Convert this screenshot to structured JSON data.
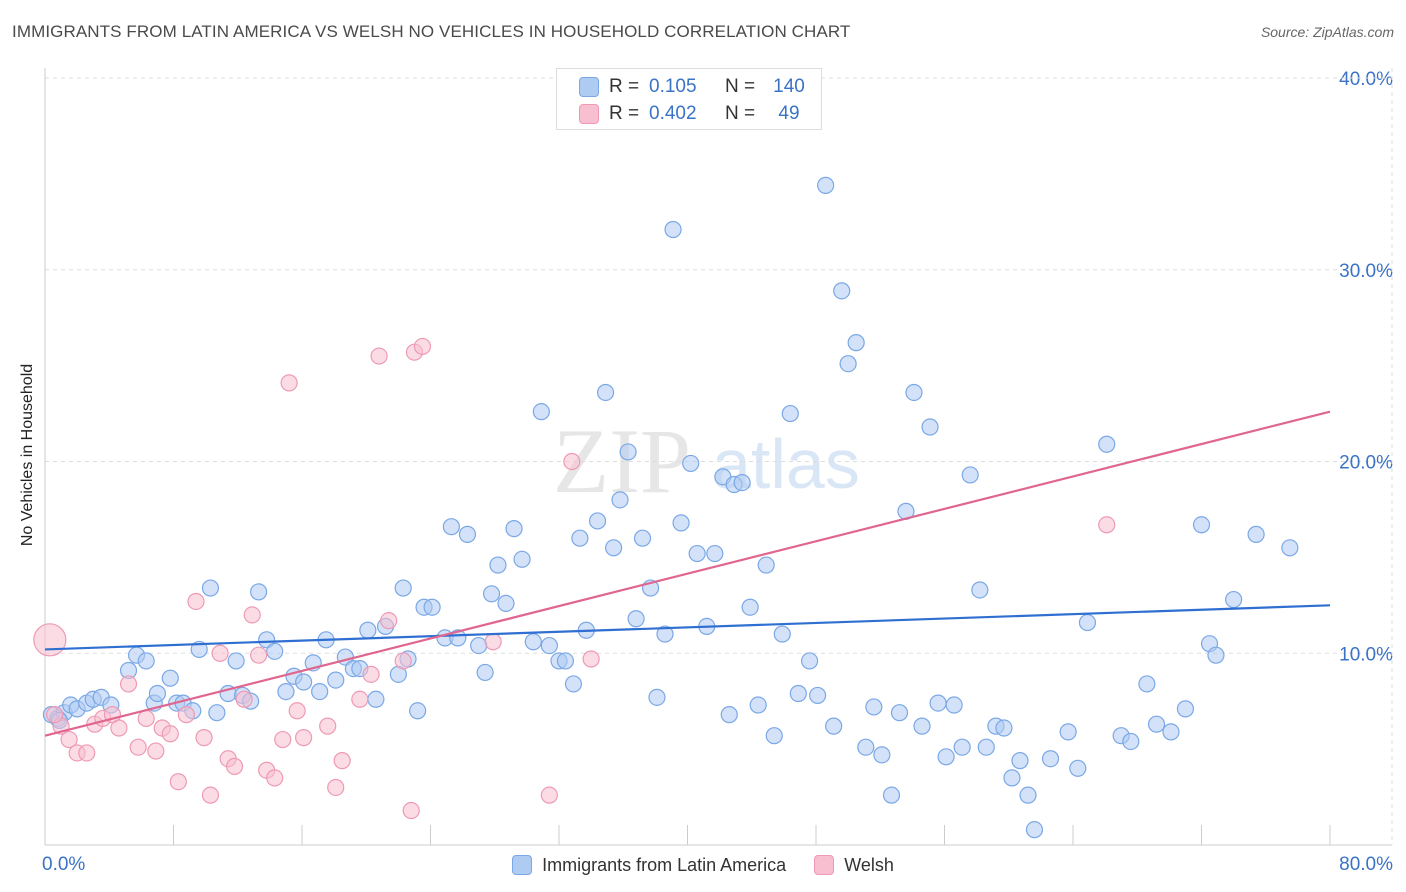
{
  "title": "IMMIGRANTS FROM LATIN AMERICA VS WELSH NO VEHICLES IN HOUSEHOLD CORRELATION CHART",
  "source": "Source: ZipAtlas.com",
  "watermark": {
    "zip": "ZIP",
    "atlas": "atlas"
  },
  "colors": {
    "blue_fill": "#aecbf2",
    "blue_stroke": "#7aa8e6",
    "blue_line": "#2f6fd1",
    "pink_fill": "#f7bfd0",
    "pink_stroke": "#ee9ab5",
    "pink_line": "#e0668f",
    "axis_label": "#3a73c6",
    "grid": "#dddddd"
  },
  "stats": [
    {
      "label": "R =",
      "r": "0.105",
      "n_label": "N =",
      "n": "140",
      "color": "blue"
    },
    {
      "label": "R =",
      "r": "0.402",
      "n_label": "N =",
      "n": "49",
      "color": "pink"
    }
  ],
  "chart_data": {
    "type": "scatter",
    "title": "IMMIGRANTS FROM LATIN AMERICA VS WELSH NO VEHICLES IN HOUSEHOLD CORRELATION CHART",
    "xlabel": "",
    "ylabel": "No Vehicles in Household",
    "xlim": [
      0,
      80
    ],
    "ylim": [
      0,
      40
    ],
    "x_tick_labels": [
      {
        "value": 0,
        "label": "0.0%"
      },
      {
        "value": 80,
        "label": "80.0%"
      }
    ],
    "y_tick_labels": [
      {
        "value": 10,
        "label": "10.0%"
      },
      {
        "value": 20,
        "label": "20.0%"
      },
      {
        "value": 30,
        "label": "30.0%"
      },
      {
        "value": 40,
        "label": "40.0%"
      }
    ],
    "grid": true,
    "legend_position": "bottom-center",
    "series": [
      {
        "name": "Immigrants from Latin America",
        "color": "blue",
        "trend": {
          "x": [
            0,
            80
          ],
          "y": [
            10.2,
            12.5
          ]
        },
        "points": [
          [
            0.4,
            6.8
          ],
          [
            0.8,
            6.6
          ],
          [
            1.2,
            6.9
          ],
          [
            1.6,
            7.3
          ],
          [
            2.0,
            7.1
          ],
          [
            2.6,
            7.4
          ],
          [
            3.0,
            7.6
          ],
          [
            3.5,
            7.7
          ],
          [
            4.1,
            7.3
          ],
          [
            5.2,
            9.1
          ],
          [
            5.7,
            9.9
          ],
          [
            6.3,
            9.6
          ],
          [
            6.8,
            7.4
          ],
          [
            7.0,
            7.9
          ],
          [
            7.8,
            8.7
          ],
          [
            8.2,
            7.4
          ],
          [
            8.6,
            7.4
          ],
          [
            9.2,
            7.0
          ],
          [
            9.6,
            10.2
          ],
          [
            10.3,
            13.4
          ],
          [
            10.7,
            6.9
          ],
          [
            11.4,
            7.9
          ],
          [
            11.9,
            9.6
          ],
          [
            12.3,
            7.8
          ],
          [
            12.8,
            7.5
          ],
          [
            13.3,
            13.2
          ],
          [
            13.8,
            10.7
          ],
          [
            14.3,
            10.1
          ],
          [
            15.0,
            8.0
          ],
          [
            15.5,
            8.8
          ],
          [
            16.1,
            8.5
          ],
          [
            16.7,
            9.5
          ],
          [
            17.1,
            8.0
          ],
          [
            17.5,
            10.7
          ],
          [
            18.1,
            8.6
          ],
          [
            18.7,
            9.8
          ],
          [
            19.2,
            9.2
          ],
          [
            19.6,
            9.2
          ],
          [
            20.1,
            11.2
          ],
          [
            20.6,
            7.6
          ],
          [
            21.2,
            11.4
          ],
          [
            22.0,
            8.9
          ],
          [
            22.3,
            13.4
          ],
          [
            22.6,
            9.7
          ],
          [
            23.2,
            7.0
          ],
          [
            23.6,
            12.4
          ],
          [
            24.1,
            12.4
          ],
          [
            24.9,
            10.8
          ],
          [
            25.3,
            16.6
          ],
          [
            25.7,
            10.8
          ],
          [
            26.3,
            16.2
          ],
          [
            27.0,
            10.4
          ],
          [
            27.4,
            9.0
          ],
          [
            27.8,
            13.1
          ],
          [
            28.2,
            14.6
          ],
          [
            28.7,
            12.6
          ],
          [
            29.2,
            16.5
          ],
          [
            29.7,
            14.9
          ],
          [
            30.4,
            10.6
          ],
          [
            30.9,
            22.6
          ],
          [
            31.4,
            10.4
          ],
          [
            32.0,
            9.6
          ],
          [
            32.4,
            9.6
          ],
          [
            32.9,
            8.4
          ],
          [
            33.3,
            16.0
          ],
          [
            33.7,
            11.2
          ],
          [
            34.4,
            16.9
          ],
          [
            34.9,
            23.6
          ],
          [
            35.4,
            15.5
          ],
          [
            35.8,
            18.0
          ],
          [
            36.3,
            20.5
          ],
          [
            36.8,
            11.8
          ],
          [
            37.2,
            16.0
          ],
          [
            37.7,
            13.4
          ],
          [
            38.1,
            7.7
          ],
          [
            38.6,
            11.0
          ],
          [
            39.1,
            32.1
          ],
          [
            39.6,
            16.8
          ],
          [
            40.2,
            19.9
          ],
          [
            40.6,
            15.2
          ],
          [
            41.2,
            11.4
          ],
          [
            41.7,
            15.2
          ],
          [
            42.2,
            19.2
          ],
          [
            42.6,
            6.8
          ],
          [
            42.9,
            18.8
          ],
          [
            43.4,
            18.9
          ],
          [
            43.9,
            12.4
          ],
          [
            44.4,
            7.3
          ],
          [
            44.9,
            14.6
          ],
          [
            45.4,
            5.7
          ],
          [
            45.9,
            11.0
          ],
          [
            46.4,
            22.5
          ],
          [
            46.9,
            7.9
          ],
          [
            47.6,
            9.6
          ],
          [
            48.1,
            7.8
          ],
          [
            48.6,
            34.4
          ],
          [
            49.1,
            6.2
          ],
          [
            49.6,
            28.9
          ],
          [
            50.0,
            25.1
          ],
          [
            50.5,
            26.2
          ],
          [
            51.1,
            5.1
          ],
          [
            51.6,
            7.2
          ],
          [
            52.1,
            4.7
          ],
          [
            52.7,
            2.6
          ],
          [
            53.2,
            6.9
          ],
          [
            53.6,
            17.4
          ],
          [
            54.1,
            23.6
          ],
          [
            54.6,
            6.2
          ],
          [
            55.1,
            21.8
          ],
          [
            55.6,
            7.4
          ],
          [
            56.1,
            4.6
          ],
          [
            56.6,
            7.3
          ],
          [
            57.1,
            5.1
          ],
          [
            57.6,
            19.3
          ],
          [
            58.2,
            13.3
          ],
          [
            58.6,
            5.1
          ],
          [
            59.2,
            6.2
          ],
          [
            59.7,
            6.1
          ],
          [
            60.2,
            3.5
          ],
          [
            60.7,
            4.4
          ],
          [
            61.2,
            2.6
          ],
          [
            61.6,
            0.8
          ],
          [
            62.6,
            4.5
          ],
          [
            63.7,
            5.9
          ],
          [
            64.3,
            4.0
          ],
          [
            64.9,
            11.6
          ],
          [
            66.1,
            20.9
          ],
          [
            67.0,
            5.7
          ],
          [
            67.6,
            5.4
          ],
          [
            68.6,
            8.4
          ],
          [
            69.2,
            6.3
          ],
          [
            70.1,
            5.9
          ],
          [
            71.0,
            7.1
          ],
          [
            72.0,
            16.7
          ],
          [
            72.5,
            10.5
          ],
          [
            72.9,
            9.9
          ],
          [
            74.0,
            12.8
          ],
          [
            75.4,
            16.2
          ],
          [
            77.5,
            15.5
          ],
          [
            0.9,
            6.5
          ]
        ]
      },
      {
        "name": "Welsh",
        "color": "pink",
        "trend": {
          "x": [
            0,
            80
          ],
          "y": [
            5.7,
            22.6
          ]
        },
        "points": [
          [
            0.3,
            10.7
          ],
          [
            1.0,
            6.2
          ],
          [
            1.5,
            5.5
          ],
          [
            2.0,
            4.8
          ],
          [
            2.6,
            4.8
          ],
          [
            3.1,
            6.3
          ],
          [
            3.6,
            6.6
          ],
          [
            4.2,
            6.8
          ],
          [
            4.6,
            6.1
          ],
          [
            5.2,
            8.4
          ],
          [
            5.8,
            5.1
          ],
          [
            6.3,
            6.6
          ],
          [
            6.9,
            4.9
          ],
          [
            7.3,
            6.1
          ],
          [
            7.8,
            5.8
          ],
          [
            8.3,
            3.3
          ],
          [
            8.8,
            6.8
          ],
          [
            9.4,
            12.7
          ],
          [
            9.9,
            5.6
          ],
          [
            10.3,
            2.6
          ],
          [
            10.9,
            10.0
          ],
          [
            11.4,
            4.5
          ],
          [
            11.8,
            4.1
          ],
          [
            12.4,
            7.6
          ],
          [
            12.9,
            12.0
          ],
          [
            13.3,
            9.9
          ],
          [
            13.8,
            3.9
          ],
          [
            14.3,
            3.5
          ],
          [
            14.8,
            5.5
          ],
          [
            15.2,
            24.1
          ],
          [
            15.7,
            7.0
          ],
          [
            16.1,
            5.6
          ],
          [
            17.6,
            6.2
          ],
          [
            18.1,
            3.0
          ],
          [
            18.5,
            4.4
          ],
          [
            19.6,
            7.6
          ],
          [
            20.3,
            8.9
          ],
          [
            20.8,
            25.5
          ],
          [
            21.4,
            11.7
          ],
          [
            22.8,
            1.8
          ],
          [
            22.3,
            9.6
          ],
          [
            23.0,
            25.7
          ],
          [
            23.5,
            26.0
          ],
          [
            27.9,
            10.6
          ],
          [
            31.4,
            2.6
          ],
          [
            32.8,
            20.0
          ],
          [
            34.0,
            9.7
          ],
          [
            66.1,
            16.7
          ],
          [
            0.6,
            6.8
          ]
        ]
      }
    ]
  },
  "legend": [
    {
      "label": "Immigrants from Latin America",
      "color": "blue"
    },
    {
      "label": "Welsh",
      "color": "pink"
    }
  ]
}
